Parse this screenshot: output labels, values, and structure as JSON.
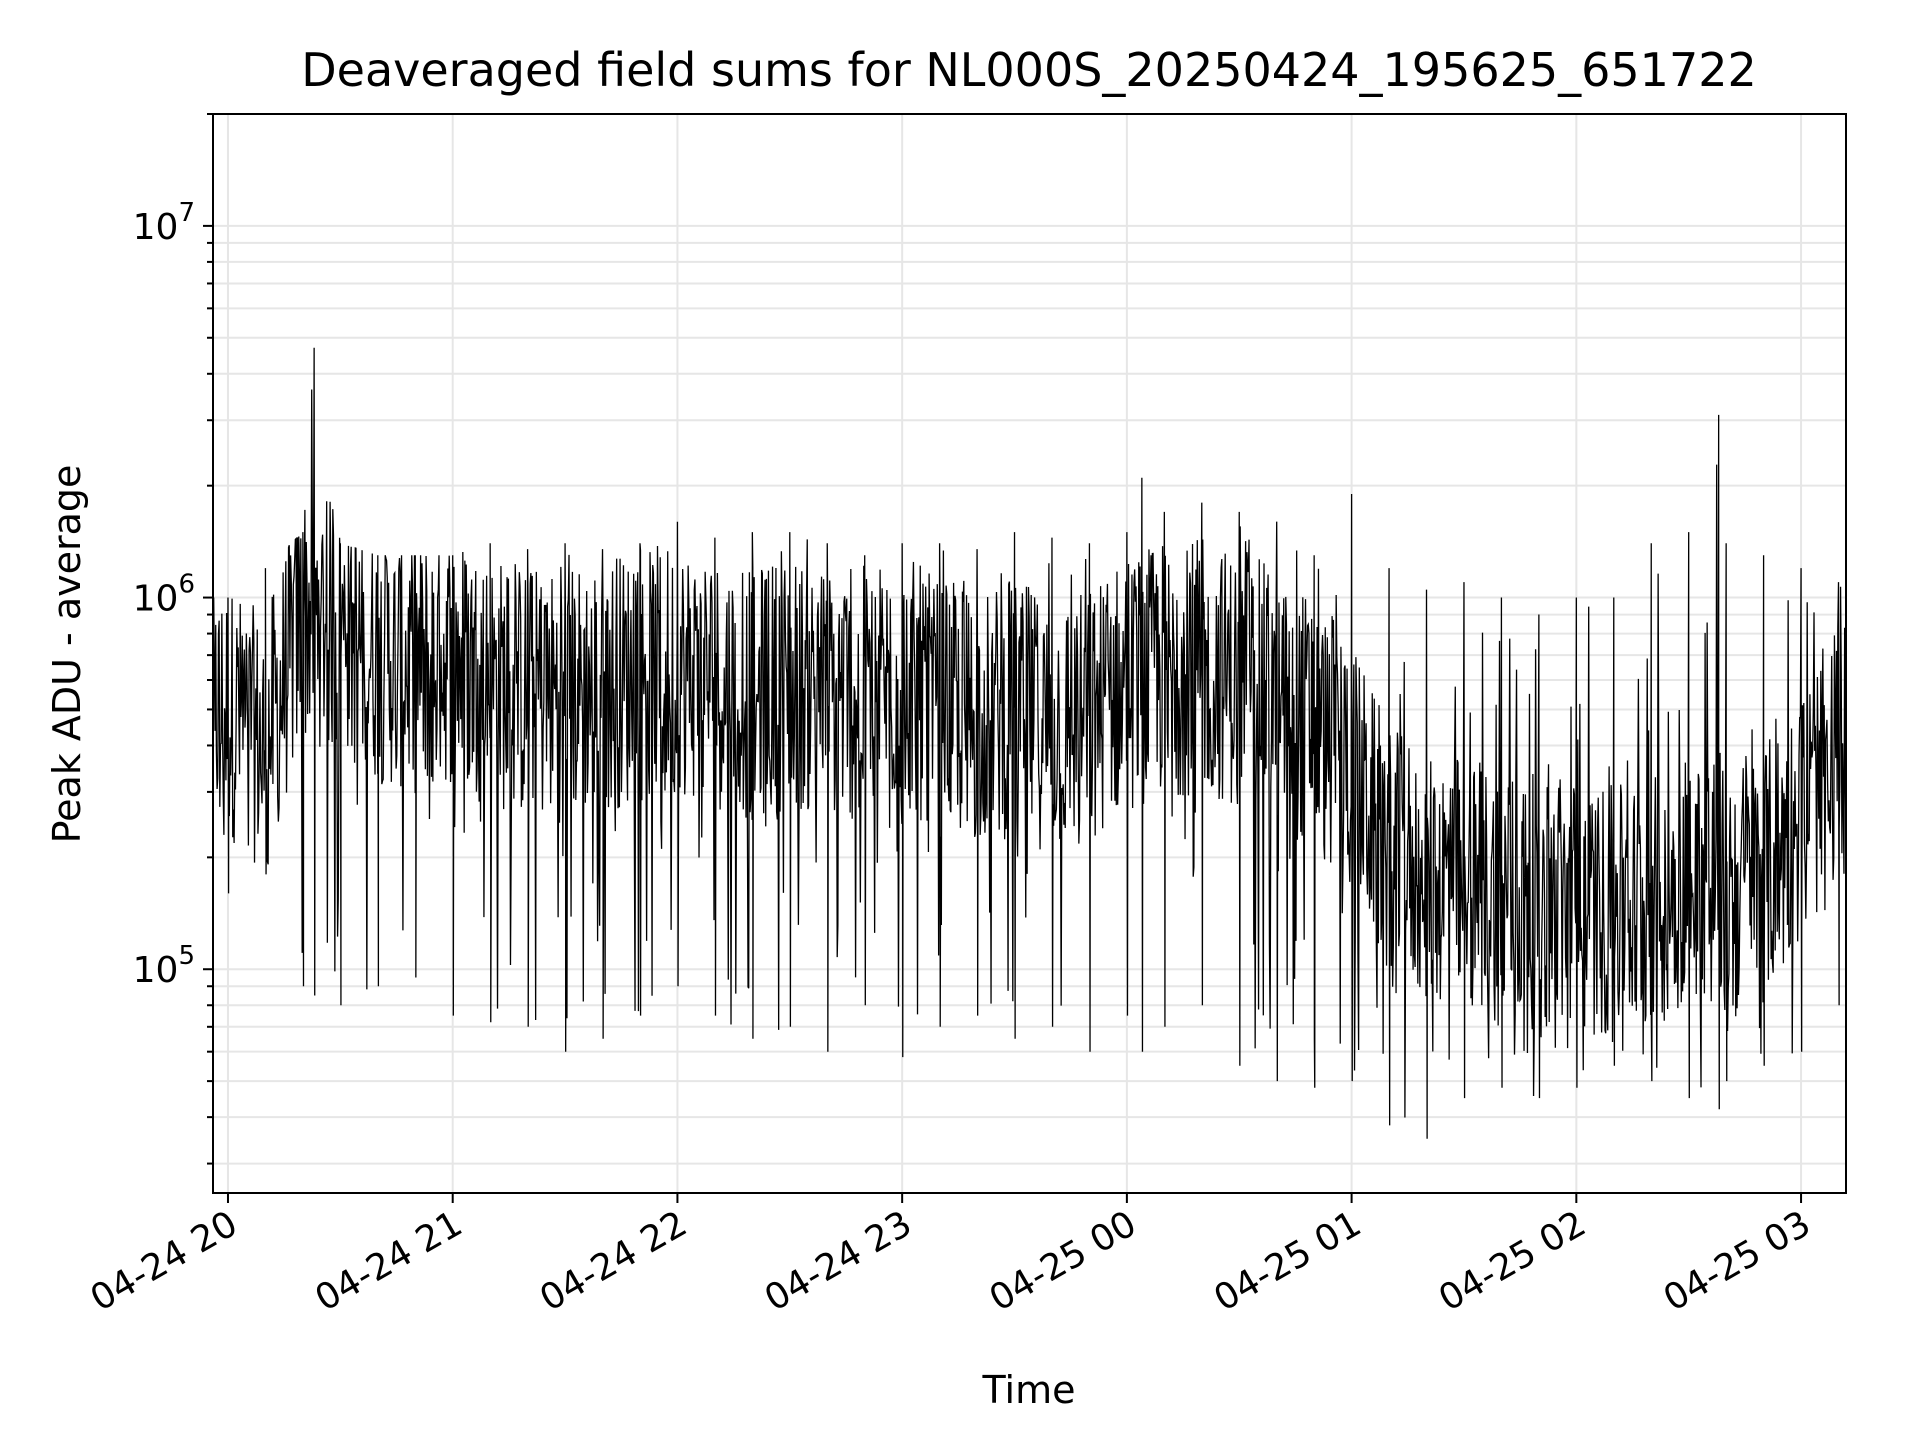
{
  "chart_data": {
    "type": "line",
    "title": "Deaveraged field sums for NL000S_20250424_195625_651722",
    "xlabel": "Time",
    "ylabel": "Peak ADU - average",
    "yscale": "log",
    "ylim": [
      25000,
      20000000
    ],
    "xlim": [
      "2025-04-24 19:56",
      "2025-04-25 03:12"
    ],
    "x_tick_labels": [
      "04-24 20",
      "04-24 21",
      "04-24 22",
      "04-24 23",
      "04-25 00",
      "04-25 01",
      "04-25 02",
      "04-25 03"
    ],
    "y_tick_labels": [
      {
        "base": "10",
        "exp": "5",
        "value": 100000
      },
      {
        "base": "10",
        "exp": "6",
        "value": 1000000
      },
      {
        "base": "10",
        "exp": "7",
        "value": 10000000
      }
    ],
    "grid": true,
    "line_color": "#000000",
    "grid_color": "#e6e6e6",
    "series": [
      {
        "x": [
          "2025-04-24 20:00",
          "2025-04-24 20:10",
          "2025-04-24 20:20",
          "2025-04-24 20:23",
          "2025-04-24 20:30",
          "2025-04-24 20:40",
          "2025-04-24 20:50",
          "2025-04-24 21:00",
          "2025-04-24 21:10",
          "2025-04-24 21:20",
          "2025-04-24 21:30",
          "2025-04-24 21:40",
          "2025-04-24 21:50",
          "2025-04-24 22:00",
          "2025-04-24 22:10",
          "2025-04-24 22:20",
          "2025-04-24 22:30",
          "2025-04-24 22:40",
          "2025-04-24 22:50",
          "2025-04-24 23:00",
          "2025-04-24 23:10",
          "2025-04-24 23:20",
          "2025-04-24 23:30",
          "2025-04-24 23:40",
          "2025-04-24 23:50",
          "2025-04-25 00:00",
          "2025-04-25 00:04",
          "2025-04-25 00:10",
          "2025-04-25 00:20",
          "2025-04-25 00:30",
          "2025-04-25 00:40",
          "2025-04-25 00:50",
          "2025-04-25 01:00",
          "2025-04-25 01:10",
          "2025-04-25 01:20",
          "2025-04-25 01:30",
          "2025-04-25 01:40",
          "2025-04-25 01:50",
          "2025-04-25 02:00",
          "2025-04-25 02:10",
          "2025-04-25 02:20",
          "2025-04-25 02:30",
          "2025-04-25 02:38",
          "2025-04-25 02:40",
          "2025-04-25 02:50",
          "2025-04-25 03:00",
          "2025-04-25 03:10"
        ],
        "typical": [
          500000,
          400000,
          900000,
          900000,
          800000,
          700000,
          650000,
          700000,
          600000,
          550000,
          550000,
          600000,
          600000,
          650000,
          600000,
          550000,
          600000,
          550000,
          550000,
          600000,
          500000,
          480000,
          500000,
          450000,
          480000,
          600000,
          600000,
          650000,
          650000,
          600000,
          550000,
          450000,
          350000,
          200000,
          180000,
          170000,
          160000,
          150000,
          150000,
          140000,
          150000,
          180000,
          180000,
          160000,
          180000,
          250000,
          400000
        ],
        "high": [
          1000000,
          1200000,
          1500000,
          4700000,
          1400000,
          1300000,
          1300000,
          1300000,
          1400000,
          1350000,
          1400000,
          1350000,
          1400000,
          1600000,
          1450000,
          1500000,
          1500000,
          1400000,
          1300000,
          1400000,
          1400000,
          1350000,
          1500000,
          1450000,
          1400000,
          1500000,
          2100000,
          1700000,
          1800000,
          1700000,
          1600000,
          1300000,
          1900000,
          1200000,
          1050000,
          1100000,
          1000000,
          900000,
          1000000,
          1000000,
          1400000,
          1500000,
          3100000,
          1400000,
          1300000,
          1200000,
          1100000
        ],
        "low": [
          160000,
          180000,
          90000,
          85000,
          80000,
          90000,
          95000,
          75000,
          72000,
          70000,
          60000,
          65000,
          75000,
          90000,
          75000,
          65000,
          70000,
          60000,
          80000,
          58000,
          70000,
          75000,
          65000,
          70000,
          60000,
          75000,
          60000,
          70000,
          80000,
          55000,
          50000,
          48000,
          50000,
          38000,
          35000,
          45000,
          48000,
          45000,
          48000,
          55000,
          50000,
          45000,
          42000,
          50000,
          55000,
          60000,
          80000
        ]
      }
    ]
  }
}
